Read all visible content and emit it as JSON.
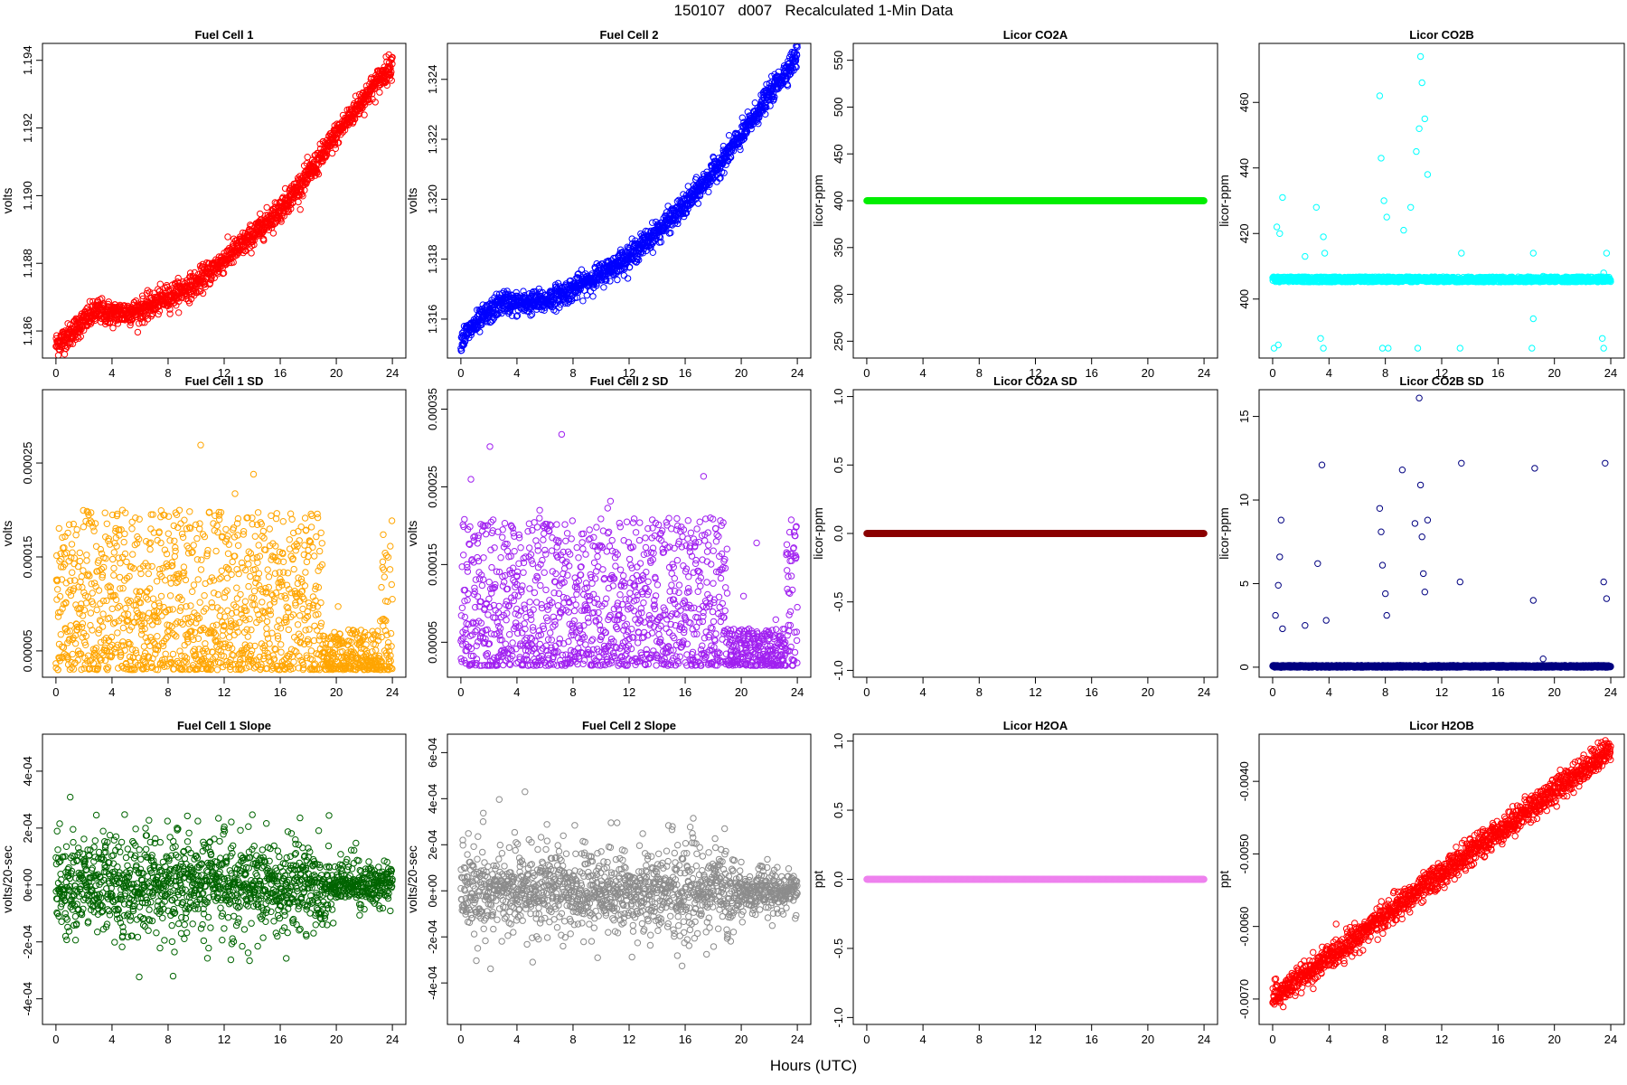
{
  "page": {
    "title": "150107   d007   Recalculated 1-Min Data",
    "xlabel": "Hours (UTC)"
  },
  "chart_data": [
    {
      "type": "scatter",
      "title": "Fuel Cell 1",
      "ylabel": "volts",
      "color": "#ff0000",
      "xlim": [
        -0.96,
        24.96
      ],
      "ylim": [
        1.1852,
        1.1945
      ],
      "xticks": [
        0,
        4,
        8,
        12,
        16,
        20,
        24
      ],
      "xtick_labels": [
        "0",
        "4",
        "8",
        "12",
        "16",
        "20",
        "24"
      ],
      "yticks": [
        1.186,
        1.188,
        1.19,
        1.192,
        1.194
      ],
      "ytick_labels": [
        "1.186",
        "1.188",
        "1.190",
        "1.192",
        "1.194"
      ],
      "trend": [
        [
          0,
          1.1856
        ],
        [
          1,
          1.1859
        ],
        [
          2,
          1.1863
        ],
        [
          3,
          1.1866
        ],
        [
          4,
          1.1865
        ],
        [
          6,
          1.1866
        ],
        [
          8,
          1.187
        ],
        [
          10,
          1.1874
        ],
        [
          12,
          1.1881
        ],
        [
          14,
          1.1888
        ],
        [
          16,
          1.1896
        ],
        [
          18,
          1.1906
        ],
        [
          20,
          1.1918
        ],
        [
          22,
          1.1929
        ],
        [
          24,
          1.1939
        ]
      ],
      "noise": 0.00018,
      "n": 1440
    },
    {
      "type": "scatter",
      "title": "Fuel Cell 2",
      "ylabel": "volts",
      "color": "#0000ff",
      "xlim": [
        -0.96,
        24.96
      ],
      "ylim": [
        1.3147,
        1.3252
      ],
      "xticks": [
        0,
        4,
        8,
        12,
        16,
        20,
        24
      ],
      "xtick_labels": [
        "0",
        "4",
        "8",
        "12",
        "16",
        "20",
        "24"
      ],
      "yticks": [
        1.316,
        1.318,
        1.32,
        1.322,
        1.324
      ],
      "ytick_labels": [
        "1.316",
        "1.318",
        "1.320",
        "1.322",
        "1.324"
      ],
      "trend": [
        [
          0,
          1.3153
        ],
        [
          1,
          1.3158
        ],
        [
          2,
          1.3162
        ],
        [
          3,
          1.3166
        ],
        [
          4,
          1.3165
        ],
        [
          6,
          1.3166
        ],
        [
          8,
          1.317
        ],
        [
          10,
          1.3175
        ],
        [
          12,
          1.3181
        ],
        [
          14,
          1.3189
        ],
        [
          16,
          1.3198
        ],
        [
          18,
          1.3209
        ],
        [
          20,
          1.3221
        ],
        [
          22,
          1.3235
        ],
        [
          24,
          1.3248
        ]
      ],
      "noise": 0.00019,
      "n": 1440
    },
    {
      "type": "scatter",
      "title": "Licor CO2A",
      "ylabel": "licor-ppm",
      "color": "#00ee00",
      "xlim": [
        -0.96,
        24.96
      ],
      "ylim": [
        232,
        568
      ],
      "xticks": [
        0,
        4,
        8,
        12,
        16,
        20,
        24
      ],
      "xtick_labels": [
        "0",
        "4",
        "8",
        "12",
        "16",
        "20",
        "24"
      ],
      "yticks": [
        250,
        300,
        350,
        400,
        450,
        500,
        550
      ],
      "ytick_labels": [
        "250",
        "300",
        "350",
        "400",
        "450",
        "500",
        "550"
      ],
      "constant": 400,
      "n": 1440
    },
    {
      "type": "scatter",
      "title": "Licor CO2B",
      "ylabel": "licor-ppm",
      "color": "#00ffff",
      "xlim": [
        -0.96,
        24.96
      ],
      "ylim": [
        382,
        478
      ],
      "xticks": [
        0,
        4,
        8,
        12,
        16,
        20,
        24
      ],
      "xtick_labels": [
        "0",
        "4",
        "8",
        "12",
        "16",
        "20",
        "24"
      ],
      "yticks": [
        400,
        420,
        440,
        460
      ],
      "ytick_labels": [
        "400",
        "420",
        "440",
        "460"
      ],
      "baseline": 406,
      "n": 1440,
      "spikes": [
        [
          0.3,
          422
        ],
        [
          0.5,
          420
        ],
        [
          0.7,
          431
        ],
        [
          2.3,
          413
        ],
        [
          3.1,
          428
        ],
        [
          3.6,
          419
        ],
        [
          3.7,
          414
        ],
        [
          7.6,
          462
        ],
        [
          7.7,
          443
        ],
        [
          7.9,
          430
        ],
        [
          8.1,
          425
        ],
        [
          9.3,
          421
        ],
        [
          9.8,
          428
        ],
        [
          10.2,
          445
        ],
        [
          10.4,
          452
        ],
        [
          10.5,
          474
        ],
        [
          10.6,
          466
        ],
        [
          10.8,
          455
        ],
        [
          11.0,
          438
        ],
        [
          13.4,
          414
        ],
        [
          18.5,
          414
        ],
        [
          19.2,
          407
        ],
        [
          23.5,
          408
        ],
        [
          23.7,
          414
        ]
      ],
      "dips": [
        [
          0.1,
          385
        ],
        [
          0.4,
          386
        ],
        [
          3.4,
          388
        ],
        [
          3.6,
          385
        ],
        [
          7.8,
          385
        ],
        [
          8.2,
          385
        ],
        [
          10.3,
          385
        ],
        [
          13.3,
          385
        ],
        [
          18.4,
          385
        ],
        [
          18.5,
          394
        ],
        [
          23.4,
          388
        ],
        [
          23.5,
          385
        ]
      ]
    },
    {
      "type": "scatter",
      "title": "Fuel Cell 1 SD",
      "ylabel": "volts",
      "color": "#ffa500",
      "xlim": [
        -0.96,
        24.96
      ],
      "ylim": [
        2.2e-05,
        0.000328
      ],
      "xticks": [
        0,
        4,
        8,
        12,
        16,
        20,
        24
      ],
      "xtick_labels": [
        "0",
        "4",
        "8",
        "12",
        "16",
        "20",
        "24"
      ],
      "yticks": [
        5e-05,
        0.00015,
        0.00025
      ],
      "ytick_labels": [
        "0.00005",
        "0.00015",
        "0.00025"
      ],
      "floor": 3e-05,
      "spread": 0.00017,
      "late_drop_start": 19,
      "n": 1440
    },
    {
      "type": "scatter",
      "title": "Fuel Cell 2 SD",
      "ylabel": "volts",
      "color": "#a020f0",
      "xlim": [
        -0.96,
        24.96
      ],
      "ylim": [
        5e-06,
        0.000375
      ],
      "xticks": [
        0,
        4,
        8,
        12,
        16,
        20,
        24
      ],
      "xtick_labels": [
        "0",
        "4",
        "8",
        "12",
        "16",
        "20",
        "24"
      ],
      "yticks": [
        5e-05,
        0.00015,
        0.00025,
        0.00035
      ],
      "ytick_labels": [
        "0.00005",
        "0.00015",
        "0.00025",
        "0.00035"
      ],
      "floor": 2e-05,
      "spread": 0.00019,
      "late_drop_start": 19,
      "n": 1440
    },
    {
      "type": "scatter",
      "title": "Licor CO2A SD",
      "ylabel": "licor-ppm",
      "color": "#8b0000",
      "xlim": [
        -0.96,
        24.96
      ],
      "ylim": [
        -1.05,
        1.05
      ],
      "xticks": [
        0,
        4,
        8,
        12,
        16,
        20,
        24
      ],
      "xtick_labels": [
        "0",
        "4",
        "8",
        "12",
        "16",
        "20",
        "24"
      ],
      "yticks": [
        -1.0,
        -0.5,
        0.0,
        0.5,
        1.0
      ],
      "ytick_labels": [
        "-1.0",
        "-0.5",
        "0.0",
        "0.5",
        "1.0"
      ],
      "constant": 0,
      "n": 1440
    },
    {
      "type": "scatter",
      "title": "Licor CO2B SD",
      "ylabel": "licor-ppm",
      "color": "#000080",
      "xlim": [
        -0.96,
        24.96
      ],
      "ylim": [
        -0.6,
        16.6
      ],
      "xticks": [
        0,
        4,
        8,
        12,
        16,
        20,
        24
      ],
      "xtick_labels": [
        "0",
        "4",
        "8",
        "12",
        "16",
        "20",
        "24"
      ],
      "yticks": [
        0,
        5,
        10,
        15
      ],
      "ytick_labels": [
        "0",
        "5",
        "10",
        "15"
      ],
      "baseline": 0.05,
      "n": 1440,
      "spikes": [
        [
          0.2,
          3.1
        ],
        [
          0.4,
          4.9
        ],
        [
          0.5,
          6.6
        ],
        [
          0.6,
          8.8
        ],
        [
          0.7,
          2.3
        ],
        [
          2.3,
          2.5
        ],
        [
          3.2,
          6.2
        ],
        [
          3.5,
          12.1
        ],
        [
          3.8,
          2.8
        ],
        [
          7.6,
          9.5
        ],
        [
          7.7,
          8.1
        ],
        [
          7.8,
          6.1
        ],
        [
          8.0,
          4.4
        ],
        [
          8.1,
          3.1
        ],
        [
          9.2,
          11.8
        ],
        [
          10.1,
          8.6
        ],
        [
          10.4,
          16.1
        ],
        [
          10.5,
          10.9
        ],
        [
          10.6,
          7.8
        ],
        [
          10.7,
          5.6
        ],
        [
          10.8,
          4.5
        ],
        [
          11.0,
          8.8
        ],
        [
          13.3,
          5.1
        ],
        [
          13.4,
          12.2
        ],
        [
          18.5,
          4.0
        ],
        [
          18.6,
          11.9
        ],
        [
          19.2,
          0.5
        ],
        [
          23.5,
          5.1
        ],
        [
          23.6,
          12.2
        ],
        [
          23.7,
          4.1
        ]
      ]
    },
    {
      "type": "scatter",
      "title": "Fuel Cell 1 Slope",
      "ylabel": "volts/20-sec",
      "color": "#006400",
      "xlim": [
        -0.96,
        24.96
      ],
      "ylim": [
        -0.00049,
        0.00053
      ],
      "xticks": [
        0,
        4,
        8,
        12,
        16,
        20,
        24
      ],
      "xtick_labels": [
        "0",
        "4",
        "8",
        "12",
        "16",
        "20",
        "24"
      ],
      "yticks": [
        -0.0004,
        -0.0002,
        0,
        0.0002,
        0.0004
      ],
      "ytick_labels": [
        "-4e-04",
        "-2e-04",
        "0e+00",
        "2e-04",
        "4e-04"
      ],
      "center": 0,
      "spread": 0.00011,
      "n": 1440
    },
    {
      "type": "scatter",
      "title": "Fuel Cell 2 Slope",
      "ylabel": "volts/20-sec",
      "color": "#8c8c8c",
      "xlim": [
        -0.96,
        24.96
      ],
      "ylim": [
        -0.00058,
        0.00068
      ],
      "xticks": [
        0,
        4,
        8,
        12,
        16,
        20,
        24
      ],
      "xtick_labels": [
        "0",
        "4",
        "8",
        "12",
        "16",
        "20",
        "24"
      ],
      "yticks": [
        -0.0004,
        -0.0002,
        0,
        0.0002,
        0.0004,
        0.0006
      ],
      "ytick_labels": [
        "-4e-04",
        "-2e-04",
        "0e+00",
        "2e-04",
        "4e-04",
        "6e-04"
      ],
      "center": 0,
      "spread": 0.00012,
      "n": 1440
    },
    {
      "type": "scatter",
      "title": "Licor H2OA",
      "ylabel": "ppt",
      "color": "#ee82ee",
      "xlim": [
        -0.96,
        24.96
      ],
      "ylim": [
        -1.05,
        1.05
      ],
      "xticks": [
        0,
        4,
        8,
        12,
        16,
        20,
        24
      ],
      "xtick_labels": [
        "0",
        "4",
        "8",
        "12",
        "16",
        "20",
        "24"
      ],
      "yticks": [
        -1.0,
        -0.5,
        0.0,
        0.5,
        1.0
      ],
      "ytick_labels": [
        "-1.0",
        "-0.5",
        "0.0",
        "0.5",
        "1.0"
      ],
      "constant": 0,
      "n": 1440
    },
    {
      "type": "scatter",
      "title": "Licor H2OB",
      "ylabel": "ppt",
      "color": "#ff0000",
      "xlim": [
        -0.96,
        24.96
      ],
      "ylim": [
        -0.00735,
        -0.00335
      ],
      "xticks": [
        0,
        4,
        8,
        12,
        16,
        20,
        24
      ],
      "xtick_labels": [
        "0",
        "4",
        "8",
        "12",
        "16",
        "20",
        "24"
      ],
      "yticks": [
        -0.007,
        -0.006,
        -0.005,
        -0.004
      ],
      "ytick_labels": [
        "-0.0070",
        "-0.0060",
        "-0.0050",
        "-0.0040"
      ],
      "trend": [
        [
          0,
          -0.007
        ],
        [
          24,
          -0.00355
        ]
      ],
      "noise": 9e-05,
      "n": 1440
    }
  ]
}
